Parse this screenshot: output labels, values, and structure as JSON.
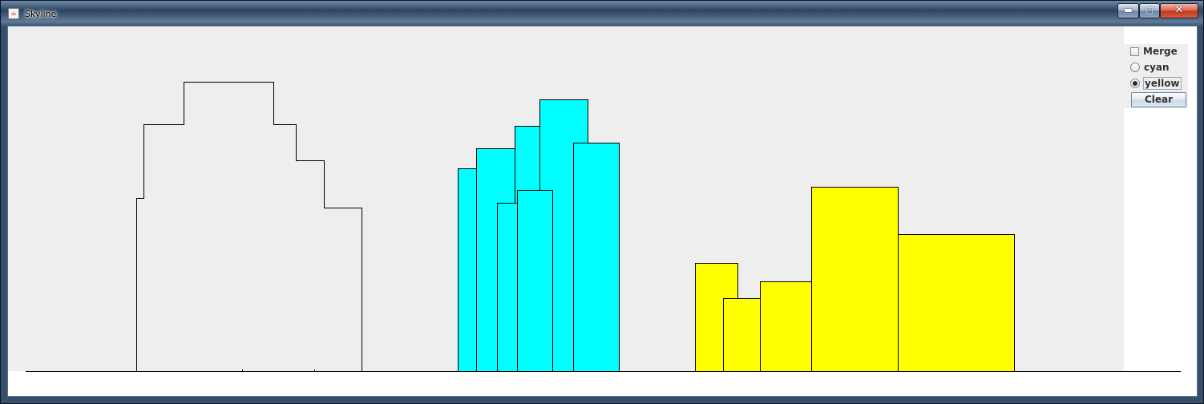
{
  "window": {
    "title": "Skyline",
    "icon": "java-cup-icon",
    "minimize_glyph": "▬",
    "maximize_glyph": "▢",
    "close_glyph": "✕"
  },
  "controls": {
    "merge": {
      "label": "Merge",
      "checked": false
    },
    "radio_options": [
      {
        "label": "cyan",
        "selected": false
      },
      {
        "label": "yellow",
        "selected": true
      }
    ],
    "clear_label": "Clear"
  },
  "skyline_drawing": {
    "ground_line": true,
    "outline_group": {
      "fill": "none",
      "stroke": "#000000"
    },
    "cyan_group": {
      "fill": "#00ffff",
      "building_count": 7
    },
    "yellow_group": {
      "fill": "#ffff00",
      "building_count": 5
    }
  }
}
